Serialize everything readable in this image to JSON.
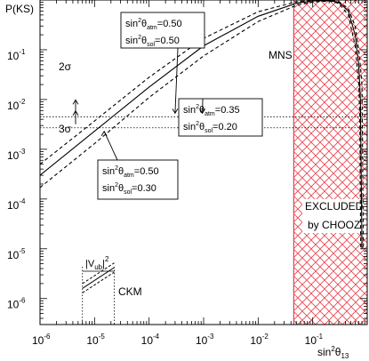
{
  "chart_data": {
    "type": "line",
    "title": "",
    "xlabel": "sin²θ₁₃",
    "ylabel": "P(KS)",
    "xscale": "log",
    "yscale": "log",
    "xlim": [
      1e-06,
      1
    ],
    "ylim": [
      3e-07,
      1
    ],
    "x_ticks": [
      {
        "base": "10",
        "exp": "-6",
        "value": 1e-06
      },
      {
        "base": "10",
        "exp": "-5",
        "value": 1e-05
      },
      {
        "base": "10",
        "exp": "-4",
        "value": 0.0001
      },
      {
        "base": "10",
        "exp": "-3",
        "value": 0.001
      },
      {
        "base": "10",
        "exp": "-2",
        "value": 0.01
      },
      {
        "base": "10",
        "exp": "-1",
        "value": 0.1
      }
    ],
    "y_ticks": [
      {
        "base": "10",
        "exp": "-1",
        "value": 0.1
      },
      {
        "base": "10",
        "exp": "-2",
        "value": 0.01
      },
      {
        "base": "10",
        "exp": "-3",
        "value": 0.001
      },
      {
        "base": "10",
        "exp": "-4",
        "value": 0.0001
      },
      {
        "base": "10",
        "exp": "-5",
        "value": 1e-05
      },
      {
        "base": "10",
        "exp": "-6",
        "value": 1e-06
      }
    ],
    "series": [
      {
        "style": "solid",
        "points": [
          [
            1e-06,
            0.0003
          ],
          [
            1e-05,
            0.0023
          ],
          [
            0.0001,
            0.0178
          ],
          [
            0.001,
            0.12
          ],
          [
            0.01,
            0.47
          ],
          [
            0.05,
            0.86
          ],
          [
            0.1,
            0.96
          ],
          [
            0.2,
            0.97
          ],
          [
            0.3,
            0.9
          ],
          [
            0.45,
            0.6
          ],
          [
            0.6,
            0.2
          ],
          [
            0.7,
            0.05
          ],
          [
            0.75,
            0.01
          ],
          [
            0.8,
            1e-05
          ]
        ]
      },
      {
        "style": "dashed",
        "points": [
          [
            1e-06,
            0.0005
          ],
          [
            1e-05,
            0.0037
          ],
          [
            0.0001,
            0.028
          ],
          [
            0.001,
            0.17
          ],
          [
            0.01,
            0.58
          ],
          [
            0.05,
            0.92
          ],
          [
            0.1,
            0.985
          ],
          [
            0.2,
            0.99
          ],
          [
            0.3,
            0.93
          ],
          [
            0.45,
            0.68
          ],
          [
            0.6,
            0.3
          ],
          [
            0.72,
            0.08
          ],
          [
            0.8,
            0.02
          ],
          [
            0.85,
            1e-05
          ]
        ]
      },
      {
        "style": "dashed",
        "points": [
          [
            1e-06,
            0.00017
          ],
          [
            1e-05,
            0.0013
          ],
          [
            0.0001,
            0.011
          ],
          [
            0.001,
            0.075
          ],
          [
            0.01,
            0.37
          ],
          [
            0.05,
            0.78
          ],
          [
            0.1,
            0.91
          ],
          [
            0.2,
            0.95
          ],
          [
            0.3,
            0.86
          ],
          [
            0.45,
            0.5
          ],
          [
            0.6,
            0.12
          ],
          [
            0.7,
            0.02
          ],
          [
            0.73,
            0.005
          ],
          [
            0.76,
            1e-05
          ]
        ]
      }
    ],
    "ckm": {
      "label": "CKM",
      "vub_label": "|V",
      "vub_sub": "ub",
      "vub_close": "|",
      "vub_sup": "2",
      "x_range": [
        6e-06,
        2.3e-05
      ],
      "solid": [
        [
          6e-06,
          1.6e-06
        ],
        [
          2.3e-05,
          4.2e-06
        ]
      ],
      "dashed_upper": [
        [
          6e-06,
          2e-06
        ],
        [
          2.3e-05,
          5.2e-06
        ]
      ],
      "dashed_lower": [
        [
          6e-06,
          1.3e-06
        ],
        [
          2.3e-05,
          3.4e-06
        ]
      ]
    },
    "reference_lines": [
      {
        "label": "2σ",
        "y": 0.0045
      },
      {
        "label": "3σ",
        "y": 0.0027
      }
    ],
    "excluded_region": {
      "x_from": 0.045,
      "x_to": 1,
      "label_line1": "EXCLUDED",
      "label_line2": "by CHOOZ",
      "color": "#e8404a"
    },
    "mns_label": "MNS",
    "annotations": [
      {
        "atm": "0.50",
        "sol": "0.50",
        "target_x": 0.0003,
        "target_y": 0.0045
      },
      {
        "atm": "0.35",
        "sol": "0.20",
        "target_x": 0.00095,
        "target_y": 0.0045
      },
      {
        "atm": "0.50",
        "sol": "0.30",
        "target_x": 1.5e-05,
        "target_y": 0.0027
      }
    ],
    "ann_text": {
      "prefix": "sin",
      "sup": "2",
      "theta": "θ",
      "atm": "atm",
      "sol": "sol",
      "eq": "="
    }
  }
}
